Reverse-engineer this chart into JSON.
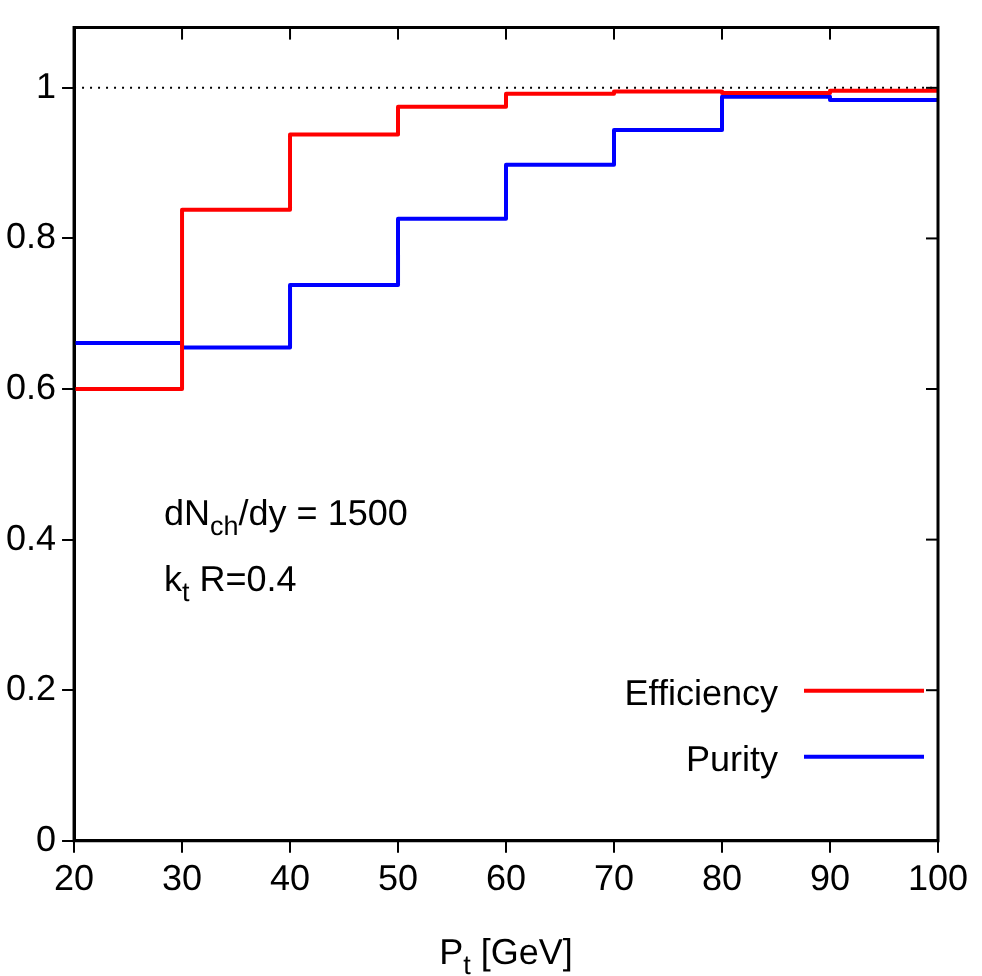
{
  "chart_data": {
    "type": "step",
    "xlabel": "P$_{t}$ [GeV]",
    "x": [
      20,
      30,
      40,
      50,
      60,
      70,
      80,
      90,
      100
    ],
    "series": [
      {
        "name": "Efficiency",
        "color": "#ff0000",
        "values": [
          0.6,
          0.838,
          0.938,
          0.975,
          0.992,
          0.995,
          0.993,
          0.996,
          0.996
        ]
      },
      {
        "name": "Purity",
        "color": "#0000ff",
        "values": [
          0.661,
          0.655,
          0.738,
          0.826,
          0.898,
          0.944,
          0.988,
          0.984,
          0.984
        ]
      }
    ],
    "xlim": [
      20,
      100
    ],
    "xticks": [
      20,
      30,
      40,
      50,
      60,
      70,
      80,
      90,
      100
    ],
    "ylim": [
      0,
      1.08
    ],
    "yticks": [
      0,
      0.2,
      0.4,
      0.6,
      0.8,
      1
    ],
    "ref_lines": [
      {
        "axis": "y",
        "value": 1,
        "color": "#000000",
        "line_style": "dotted"
      }
    ],
    "annotations": [
      {
        "text": "dN$_{ch}$/dy = 1500"
      },
      {
        "text": "k$_{t}$ R=0.4"
      }
    ],
    "legend": "bottom right",
    "grid": false,
    "marker": "none",
    "line_style": "solid"
  }
}
